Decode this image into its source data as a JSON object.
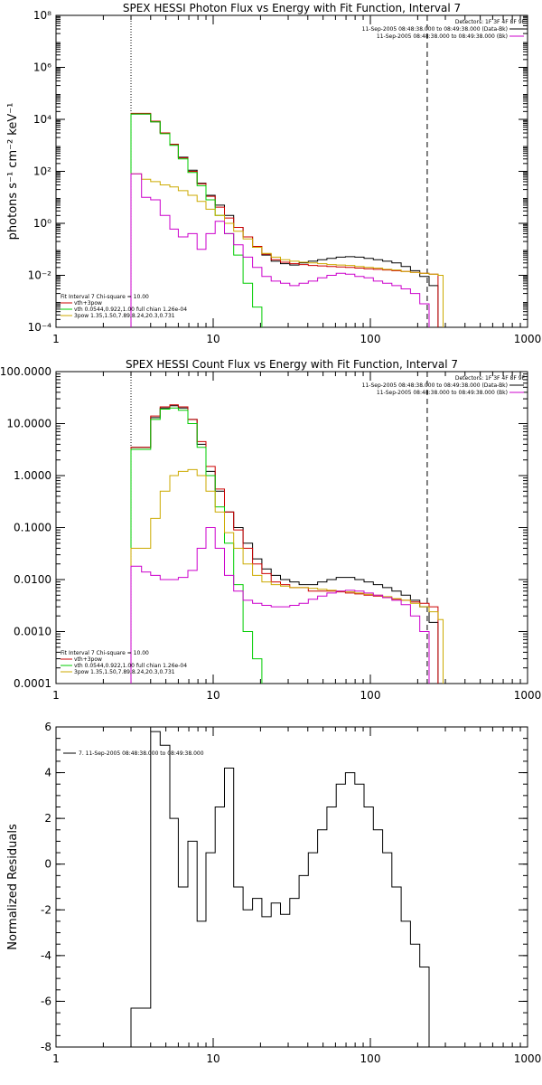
{
  "chart_data": [
    {
      "type": "line",
      "title": "SPEX HESSI Photon Flux vs Energy with Fit Function, Interval 7",
      "ylabel": "photons s⁻¹ cm⁻² keV⁻¹",
      "x_scale": "log",
      "y_scale": "log",
      "xlim": [
        1,
        1000
      ],
      "ylim": [
        0.0001,
        100000000
      ],
      "x_tick_labels": [
        "1",
        "10",
        "100",
        "1000"
      ],
      "y_tick_labels": [
        "10⁻⁴",
        "10⁻²",
        "10⁰",
        "10²",
        "10⁴",
        "10⁶",
        "10⁸"
      ],
      "vlines": [
        {
          "x": 3,
          "style": "dotted"
        },
        {
          "x": 230,
          "style": "dashed"
        }
      ],
      "legend_top_right": {
        "detectors": "Detectors: 1F 3F 4F 8F 9F",
        "entries": [
          {
            "text": "11-Sep-2005 08:48:38.000 to 08:49:38.000 (Data-Bk)",
            "color": "#000000"
          },
          {
            "text": "11-Sep-2005 08:48:38.000 to 08:49:38.000 (Bk)",
            "color": "#cc00cc"
          }
        ]
      },
      "legend_bottom_left": {
        "header": "Fit Interval 7   Chi-square = 10.00",
        "entries": [
          {
            "text": "vth+3pow",
            "color": "#cc0000"
          },
          {
            "text": "vth 0.0544,0.922,1.00  full chian 1.26e-04",
            "color": "#00cc00"
          },
          {
            "text": "3pow 1.35,1.50,7.89,8.24,20.3,0.731",
            "color": "#ccaa00"
          }
        ]
      },
      "series": [
        {
          "color": "#000000",
          "x": [
            3,
            3.5,
            4,
            4.6,
            5.3,
            6,
            6.9,
            7.9,
            9,
            10.3,
            11.8,
            13.5,
            15.5,
            17.8,
            20.4,
            23.4,
            26.8,
            30.7,
            35.2,
            40.3,
            46.2,
            52.9,
            60.6,
            69.4,
            79.6,
            91.2,
            104.5,
            119.7,
            137.1,
            157.1,
            180,
            206.2,
            236.2
          ],
          "y": [
            16000,
            16000,
            8000,
            3000,
            1100,
            350,
            110,
            35,
            12,
            5,
            2,
            0.7,
            0.3,
            0.12,
            0.06,
            0.035,
            0.028,
            0.025,
            0.03,
            0.035,
            0.04,
            0.045,
            0.05,
            0.052,
            0.05,
            0.045,
            0.04,
            0.035,
            0.03,
            0.022,
            0.015,
            0.009,
            0.004
          ]
        },
        {
          "color": "#cc0000",
          "x": [
            3,
            3.5,
            4,
            4.6,
            5.3,
            6,
            6.9,
            7.9,
            9,
            10.3,
            11.8,
            13.5,
            15.5,
            17.8,
            20.4,
            23.4,
            26.8,
            30.7,
            35.2,
            40.3,
            46.2,
            52.9,
            60.6,
            69.4,
            79.6,
            91.2,
            104.5,
            119.7,
            137.1,
            157.1,
            180,
            206.2,
            236.2
          ],
          "y": [
            17000,
            17000,
            8500,
            3000,
            1100,
            330,
            100,
            33,
            11,
            4.2,
            1.6,
            0.7,
            0.3,
            0.13,
            0.065,
            0.04,
            0.032,
            0.028,
            0.026,
            0.024,
            0.023,
            0.022,
            0.021,
            0.02,
            0.019,
            0.018,
            0.017,
            0.016,
            0.015,
            0.014,
            0.013,
            0.012,
            0.011
          ]
        },
        {
          "color": "#00cc00",
          "x": [
            3,
            3.5,
            4,
            4.6,
            5.3,
            6,
            6.9,
            7.9,
            9,
            10.3,
            11.8,
            13.5,
            15.5,
            17.8,
            20.4
          ],
          "y": [
            16000,
            16000,
            8000,
            2800,
            1000,
            300,
            90,
            28,
            8,
            2,
            0.4,
            0.06,
            0.005,
            0.0006,
            5e-05
          ]
        },
        {
          "color": "#ccaa00",
          "x": [
            3,
            3.5,
            4,
            4.6,
            5.3,
            6,
            6.9,
            7.9,
            9,
            10.3,
            11.8,
            13.5,
            15.5,
            17.8,
            20.4,
            23.4,
            26.8,
            30.7,
            35.2,
            40.3,
            46.2,
            52.9,
            60.6,
            69.4,
            79.6,
            91.2,
            104.5,
            119.7,
            137.1,
            157.1,
            180,
            206.2,
            236.2,
            270,
            290
          ],
          "y": [
            80,
            50,
            40,
            30,
            25,
            18,
            12,
            7,
            3.5,
            2,
            1,
            0.5,
            0.25,
            0.12,
            0.07,
            0.05,
            0.04,
            0.035,
            0.032,
            0.03,
            0.028,
            0.026,
            0.025,
            0.024,
            0.022,
            0.02,
            0.019,
            0.017,
            0.016,
            0.014,
            0.013,
            0.012,
            0.011,
            0.01,
            5e-05
          ]
        },
        {
          "color": "#cc00cc",
          "x": [
            3,
            3.5,
            4,
            4.6,
            5.3,
            6,
            6.9,
            7.9,
            9,
            10.3,
            11.8,
            13.5,
            15.5,
            17.8,
            20.4,
            23.4,
            26.8,
            30.7,
            35.2,
            40.3,
            46.2,
            52.9,
            60.6,
            69.4,
            79.6,
            91.2,
            104.5,
            119.7,
            137.1,
            157.1,
            180,
            206.2,
            236.2
          ],
          "y": [
            80,
            10,
            8,
            2,
            0.6,
            0.3,
            0.4,
            0.1,
            0.4,
            1.2,
            0.4,
            0.15,
            0.05,
            0.02,
            0.009,
            0.006,
            0.005,
            0.004,
            0.005,
            0.006,
            0.008,
            0.01,
            0.012,
            0.011,
            0.009,
            0.008,
            0.006,
            0.005,
            0.004,
            0.003,
            0.002,
            0.0008,
            5e-05
          ]
        }
      ]
    },
    {
      "type": "line",
      "title": "SPEX HESSI Count Flux vs Energy with Fit Function, Interval 7",
      "x_scale": "log",
      "y_scale": "log",
      "xlim": [
        1,
        1000
      ],
      "ylim": [
        0.0001,
        100
      ],
      "x_tick_labels": [
        "1",
        "10",
        "100",
        "1000"
      ],
      "y_tick_labels": [
        "0.0001",
        "0.0010",
        "0.0100",
        "0.1000",
        "1.0000",
        "10.0000",
        "100.0000"
      ],
      "vlines": [
        {
          "x": 3,
          "style": "dotted"
        },
        {
          "x": 230,
          "style": "dashed"
        }
      ],
      "legend_top_right": {
        "detectors": "Detectors: 1F 3F 4F 8F 9F",
        "entries": [
          {
            "text": "11-Sep-2005 08:48:38.000 to 08:49:38.000 (Data-Bk)",
            "color": "#000000"
          },
          {
            "text": "11-Sep-2005 08:48:38.000 to 08:49:38.000 (Bk)",
            "color": "#cc00cc"
          }
        ]
      },
      "legend_bottom_left": {
        "header": "Fit Interval 7   Chi-square = 10.00",
        "entries": [
          {
            "text": "vth+3pow",
            "color": "#cc0000"
          },
          {
            "text": "vth 0.0544,0.922,1.00  full chian 1.26e-04",
            "color": "#00cc00"
          },
          {
            "text": "3pow 1.35,1.50,7.89,8.24,20.3,0.731",
            "color": "#ccaa00"
          }
        ]
      },
      "series": [
        {
          "color": "#000000",
          "x": [
            3,
            3.5,
            4,
            4.6,
            5.3,
            6,
            6.9,
            7.9,
            9,
            10.3,
            11.8,
            13.5,
            15.5,
            17.8,
            20.4,
            23.4,
            26.8,
            30.7,
            35.2,
            40.3,
            46.2,
            52.9,
            60.6,
            69.4,
            79.6,
            91.2,
            104.5,
            119.7,
            137.1,
            157.1,
            180,
            206.2,
            236.2
          ],
          "y": [
            3.5,
            3.5,
            13,
            20,
            22,
            20,
            12,
            4,
            1.2,
            0.5,
            0.2,
            0.1,
            0.05,
            0.025,
            0.016,
            0.012,
            0.01,
            0.009,
            0.008,
            0.008,
            0.009,
            0.01,
            0.011,
            0.011,
            0.01,
            0.009,
            0.008,
            0.007,
            0.006,
            0.005,
            0.004,
            0.003,
            0.0015
          ]
        },
        {
          "color": "#cc0000",
          "x": [
            3,
            3.5,
            4,
            4.6,
            5.3,
            6,
            6.9,
            7.9,
            9,
            10.3,
            11.8,
            13.5,
            15.5,
            17.8,
            20.4,
            23.4,
            26.8,
            30.7,
            35.2,
            40.3,
            46.2,
            52.9,
            60.6,
            69.4,
            79.6,
            91.2,
            104.5,
            119.7,
            137.1,
            157.1,
            180,
            206.2,
            236.2
          ],
          "y": [
            3.5,
            3.5,
            14,
            21,
            23,
            21,
            12,
            4.5,
            1.5,
            0.55,
            0.2,
            0.09,
            0.04,
            0.02,
            0.013,
            0.009,
            0.008,
            0.007,
            0.007,
            0.006,
            0.006,
            0.006,
            0.0058,
            0.0055,
            0.0053,
            0.005,
            0.0048,
            0.0045,
            0.0042,
            0.004,
            0.0037,
            0.0035,
            0.003
          ]
        },
        {
          "color": "#00cc00",
          "x": [
            3,
            3.5,
            4,
            4.6,
            5.3,
            6,
            6.9,
            7.9,
            9,
            10.3,
            11.8,
            13.5,
            15.5,
            17.8,
            20.4
          ],
          "y": [
            3.2,
            3.2,
            12,
            19,
            20,
            18,
            10,
            3.5,
            1,
            0.25,
            0.05,
            0.008,
            0.001,
            0.0003,
            5e-05
          ]
        },
        {
          "color": "#ccaa00",
          "x": [
            3,
            3.5,
            4,
            4.6,
            5.3,
            6,
            6.9,
            7.9,
            9,
            10.3,
            11.8,
            13.5,
            15.5,
            17.8,
            20.4,
            23.4,
            26.8,
            30.7,
            35.2,
            40.3,
            46.2,
            52.9,
            60.6,
            69.4,
            79.6,
            91.2,
            104.5,
            119.7,
            137.1,
            157.1,
            180,
            206.2,
            236.2,
            270,
            290
          ],
          "y": [
            0.04,
            0.04,
            0.15,
            0.5,
            1,
            1.2,
            1.3,
            1,
            0.5,
            0.2,
            0.08,
            0.04,
            0.02,
            0.012,
            0.009,
            0.008,
            0.0075,
            0.007,
            0.007,
            0.0068,
            0.0065,
            0.0062,
            0.006,
            0.0058,
            0.0055,
            0.0052,
            0.005,
            0.0047,
            0.0043,
            0.004,
            0.0035,
            0.003,
            0.0024,
            0.0017,
            5e-05
          ]
        },
        {
          "color": "#cc00cc",
          "x": [
            3,
            3.5,
            4,
            4.6,
            5.3,
            6,
            6.9,
            7.9,
            9,
            10.3,
            11.8,
            13.5,
            15.5,
            17.8,
            20.4,
            23.4,
            26.8,
            30.7,
            35.2,
            40.3,
            46.2,
            52.9,
            60.6,
            69.4,
            79.6,
            91.2,
            104.5,
            119.7,
            137.1,
            157.1,
            180,
            206.2,
            236.2
          ],
          "y": [
            0.018,
            0.014,
            0.012,
            0.01,
            0.01,
            0.011,
            0.015,
            0.04,
            0.1,
            0.04,
            0.012,
            0.006,
            0.004,
            0.0035,
            0.0032,
            0.003,
            0.003,
            0.0032,
            0.0035,
            0.0042,
            0.0048,
            0.0055,
            0.006,
            0.0062,
            0.006,
            0.0055,
            0.005,
            0.0045,
            0.004,
            0.0033,
            0.002,
            0.001,
            5e-05
          ]
        }
      ]
    },
    {
      "type": "line",
      "ylabel": "Normalized Residuals",
      "x_scale": "log",
      "y_scale": "linear",
      "xlim": [
        1,
        1000
      ],
      "ylim": [
        -8,
        6
      ],
      "x_tick_labels": [
        "1",
        "10",
        "100",
        "1000"
      ],
      "y_ticks": [
        -8,
        -6,
        -4,
        -2,
        0,
        2,
        4,
        6
      ],
      "y_tick_labels": [
        "-8",
        "-6",
        "-4",
        "-2",
        "0",
        "2",
        "4",
        "6"
      ],
      "legend_top_left": {
        "text": "7. 11-Sep-2005 08:48:38.000 to 08:49:38.000",
        "color": "#000000"
      },
      "series": [
        {
          "color": "#000000",
          "x": [
            3,
            3.5,
            4,
            4.6,
            5.3,
            6,
            6.9,
            7.9,
            9,
            10.3,
            11.8,
            13.5,
            15.5,
            17.8,
            20.4,
            23.4,
            26.8,
            30.7,
            35.2,
            40.3,
            46.2,
            52.9,
            60.6,
            69.4,
            79.6,
            91.2,
            104.5,
            119.7,
            137.1,
            157.1,
            180,
            206.2,
            236.2
          ],
          "y": [
            -6.3,
            -6.3,
            5.8,
            5.2,
            2,
            -1,
            1,
            -2.5,
            0.5,
            2.5,
            4.2,
            -1,
            -2,
            -1.5,
            -2.3,
            -1.7,
            -2.2,
            -1.5,
            -0.5,
            0.5,
            1.5,
            2.5,
            3.5,
            4,
            3.5,
            2.5,
            1.5,
            0.5,
            -1,
            -2.5,
            -3.5,
            -4.5,
            -8
          ]
        }
      ]
    }
  ]
}
